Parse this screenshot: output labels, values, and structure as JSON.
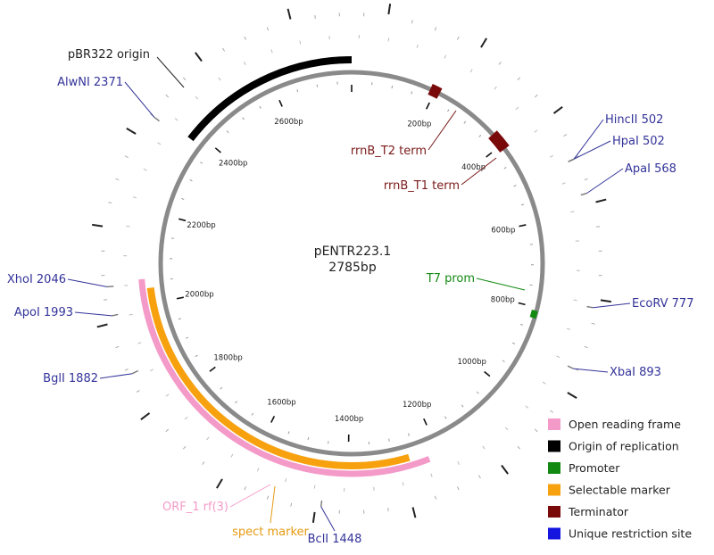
{
  "plasmid": {
    "name": "pENTR223.1",
    "length_label": "2785bp",
    "length": 2785
  },
  "tick_labels": [
    {
      "pos": 200,
      "text": "200bp"
    },
    {
      "pos": 400,
      "text": "400bp"
    },
    {
      "pos": 600,
      "text": "600bp"
    },
    {
      "pos": 800,
      "text": "800bp"
    },
    {
      "pos": 1000,
      "text": "1000bp"
    },
    {
      "pos": 1200,
      "text": "1200bp"
    },
    {
      "pos": 1400,
      "text": "1400bp"
    },
    {
      "pos": 1600,
      "text": "1600bp"
    },
    {
      "pos": 1800,
      "text": "1800bp"
    },
    {
      "pos": 2000,
      "text": "2000bp"
    },
    {
      "pos": 2200,
      "text": "2200bp"
    },
    {
      "pos": 2400,
      "text": "2400bp"
    },
    {
      "pos": 2600,
      "text": "2600bp"
    }
  ],
  "features": [
    {
      "name": "pBR322 origin",
      "type": "origin",
      "start": 2380,
      "end": 2785
    },
    {
      "name": "spect marker",
      "type": "marker",
      "start": 1265,
      "end": 2035
    },
    {
      "name": "ORF_1 rf(3)",
      "type": "orf",
      "start": 1225,
      "end": 2055
    },
    {
      "name": "rrnB_T2 term",
      "type": "terminator",
      "start": 188,
      "end": 212
    },
    {
      "name": "rrnB_T1 term",
      "type": "terminator",
      "start": 368,
      "end": 412
    },
    {
      "name": "T7 prom",
      "type": "promoter",
      "start": 808,
      "end": 826
    }
  ],
  "sites": [
    {
      "name": "HincII 502",
      "pos": 502
    },
    {
      "name": "HpaI 502",
      "pos": 502
    },
    {
      "name": "ApaI 568",
      "pos": 568
    },
    {
      "name": "EcoRV 777",
      "pos": 777
    },
    {
      "name": "XbaI 893",
      "pos": 893
    },
    {
      "name": "BclI 1448",
      "pos": 1448
    },
    {
      "name": "BglI 1882",
      "pos": 1882
    },
    {
      "name": "ApoI 1993",
      "pos": 1993
    },
    {
      "name": "XhoI 2046",
      "pos": 2046
    },
    {
      "name": "AlwNI 2371",
      "pos": 2371
    }
  ],
  "legend": [
    {
      "label": "Open reading frame",
      "color": "#f49ac8"
    },
    {
      "label": "Origin of replication",
      "color": "#000000"
    },
    {
      "label": "Promoter",
      "color": "#128a12"
    },
    {
      "label": "Selectable marker",
      "color": "#f7a10f"
    },
    {
      "label": "Terminator",
      "color": "#7a0a0a"
    },
    {
      "label": "Unique restriction site",
      "color": "#1515e0"
    }
  ],
  "colors": {
    "backbone": "#8a8a8a",
    "site_text": "#33339a",
    "origin": "#000000",
    "marker": "#f7a10f",
    "orf": "#f49ac8",
    "orf_text": "#f49ac8",
    "terminator": "#7a0a0a",
    "terminator_text": "#7a1a1a",
    "promoter": "#128a12",
    "marker_text": "#e69a10"
  }
}
